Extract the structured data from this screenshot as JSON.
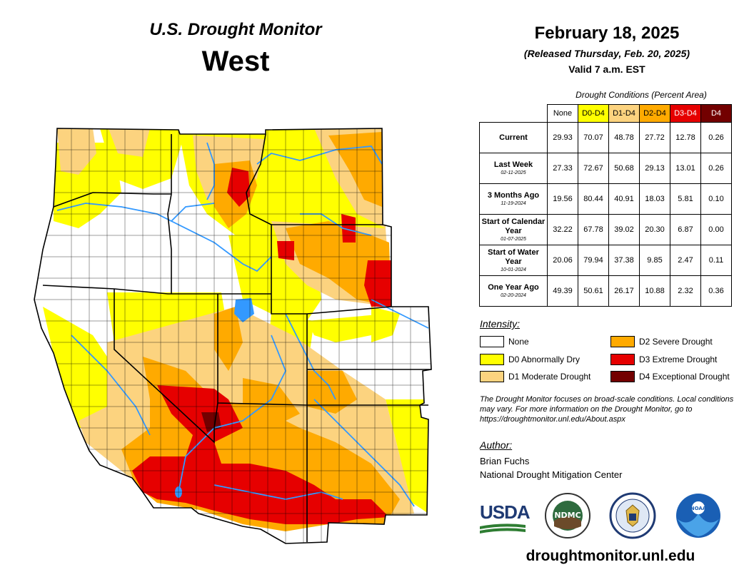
{
  "header": {
    "product": "U.S. Drought Monitor",
    "region": "West",
    "date": "February 18, 2025",
    "released": "(Released Thursday, Feb. 20, 2025)",
    "valid": "Valid 7 a.m. EST"
  },
  "table": {
    "caption": "Drought Conditions (Percent Area)",
    "columns": [
      "None",
      "D0-D4",
      "D1-D4",
      "D2-D4",
      "D3-D4",
      "D4"
    ],
    "column_colors": [
      "#ffffff",
      "#ffff00",
      "#fcd37f",
      "#ffaa00",
      "#e60000",
      "#730000"
    ],
    "rows": [
      {
        "label": "Current",
        "date": "",
        "values": [
          "29.93",
          "70.07",
          "48.78",
          "27.72",
          "12.78",
          "0.26"
        ]
      },
      {
        "label": "Last Week",
        "date": "02-11-2025",
        "values": [
          "27.33",
          "72.67",
          "50.68",
          "29.13",
          "13.01",
          "0.26"
        ]
      },
      {
        "label": "3 Months Ago",
        "date": "11-19-2024",
        "values": [
          "19.56",
          "80.44",
          "40.91",
          "18.03",
          "5.81",
          "0.10"
        ]
      },
      {
        "label": "Start of Calendar Year",
        "date": "01-07-2025",
        "values": [
          "32.22",
          "67.78",
          "39.02",
          "20.30",
          "6.87",
          "0.00"
        ]
      },
      {
        "label": "Start of Water Year",
        "date": "10-01-2024",
        "values": [
          "20.06",
          "79.94",
          "37.38",
          "9.85",
          "2.47",
          "0.11"
        ]
      },
      {
        "label": "One Year Ago",
        "date": "02-20-2024",
        "values": [
          "49.39",
          "50.61",
          "26.17",
          "10.88",
          "2.32",
          "0.36"
        ]
      }
    ]
  },
  "legend": {
    "title": "Intensity:",
    "items": [
      {
        "label": "None",
        "color": "#ffffff"
      },
      {
        "label": "D0 Abnormally Dry",
        "color": "#ffff00"
      },
      {
        "label": "D1 Moderate Drought",
        "color": "#fcd37f"
      },
      {
        "label": "D2 Severe Drought",
        "color": "#ffaa00"
      },
      {
        "label": "D3 Extreme Drought",
        "color": "#e60000"
      },
      {
        "label": "D4 Exceptional Drought",
        "color": "#730000"
      }
    ]
  },
  "note": "The Drought Monitor focuses on broad-scale conditions. Local conditions may vary. For more information on the Drought Monitor, go to https://droughtmonitor.unl.edu/About.aspx",
  "author": {
    "title": "Author:",
    "name": "Brian Fuchs",
    "org": "National Drought Mitigation Center"
  },
  "logos": {
    "usda": "USDA",
    "ndmc": "NDMC",
    "noaa": "NOAA"
  },
  "website": "droughtmonitor.unl.edu",
  "map_colors": {
    "none": "#ffffff",
    "d0": "#ffff00",
    "d1": "#fcd37f",
    "d2": "#ffaa00",
    "d3": "#e60000",
    "d4": "#730000",
    "water": "#3399ff",
    "border": "#000000"
  }
}
